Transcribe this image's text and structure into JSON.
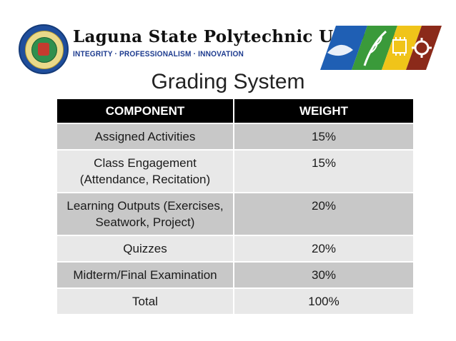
{
  "header": {
    "university_name": "Laguna State Polytechnic University",
    "motto": "INTEGRITY · PROFESSIONALISM · INNOVATION",
    "seal_icon": "university-seal-icon",
    "banner_icons": [
      "fish-icon",
      "rice-plant-icon",
      "circuit-chip-icon",
      "gear-icon"
    ],
    "banner_colors": [
      "#1f5fb4",
      "#3a9a3a",
      "#f0c419",
      "#8b2a1a"
    ]
  },
  "title": "Grading System",
  "table": {
    "headers": [
      "COMPONENT",
      "WEIGHT"
    ],
    "rows": [
      {
        "component": "Assigned Activities",
        "weight": "15%"
      },
      {
        "component": "Class Engagement (Attendance, Recitation)",
        "weight": "15%"
      },
      {
        "component": "Learning Outputs (Exercises, Seatwork, Project)",
        "weight": "20%"
      },
      {
        "component": "Quizzes",
        "weight": "20%"
      },
      {
        "component": "Midterm/Final Examination",
        "weight": "30%"
      },
      {
        "component": "Total",
        "weight": "100%"
      }
    ]
  }
}
